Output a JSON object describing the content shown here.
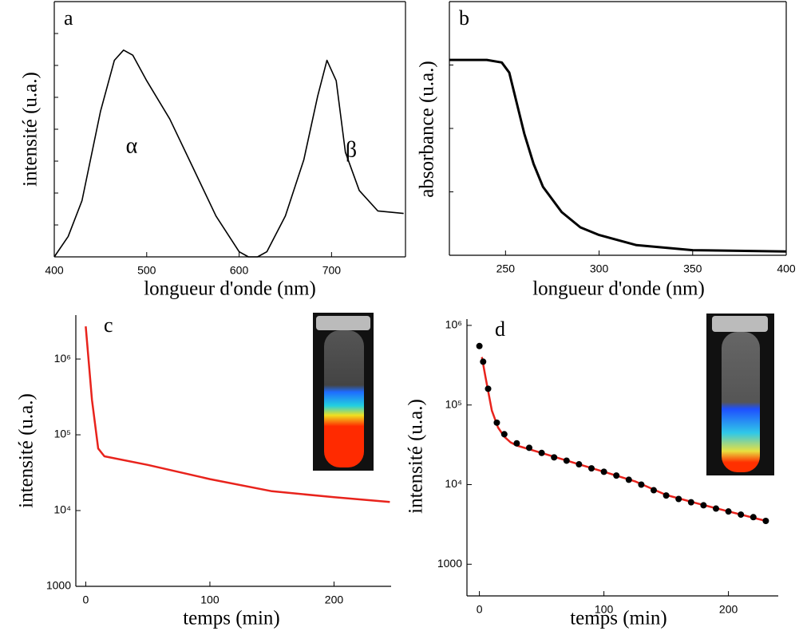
{
  "chart_data": [
    {
      "type": "line",
      "label": "a",
      "x_label": "longueur d'onde (nm)",
      "y_label": "intensité (u.a.)",
      "xlim": [
        400,
        780
      ],
      "xticks": [
        400,
        500,
        600,
        700
      ],
      "ylim": [
        0,
        1
      ],
      "log_y": false,
      "annotations": [
        "α",
        "β"
      ],
      "series": [
        {
          "mode": "lines",
          "color": "#000000",
          "x": [
            400,
            415,
            430,
            450,
            465,
            475,
            485,
            500,
            525,
            550,
            575,
            600,
            610,
            620,
            630,
            650,
            670,
            685,
            695,
            705,
            715,
            730,
            750,
            778
          ],
          "values": [
            0,
            0.08,
            0.22,
            0.57,
            0.77,
            0.81,
            0.79,
            0.69,
            0.54,
            0.35,
            0.16,
            0.02,
            0,
            0,
            0.02,
            0.16,
            0.38,
            0.63,
            0.77,
            0.69,
            0.41,
            0.26,
            0.18,
            0.17
          ]
        }
      ]
    },
    {
      "type": "line",
      "label": "b",
      "x_label": "longueur d'onde (nm)",
      "y_label": "absorbance (u.a.)",
      "xlim": [
        220,
        400
      ],
      "xticks": [
        250,
        300,
        350,
        400
      ],
      "ylim": [
        0,
        1
      ],
      "log_y": false,
      "series": [
        {
          "mode": "lines",
          "color": "#000000",
          "x": [
            220,
            240,
            248,
            252,
            256,
            260,
            265,
            270,
            280,
            290,
            300,
            320,
            350,
            400
          ],
          "values": [
            0.77,
            0.77,
            0.76,
            0.72,
            0.6,
            0.48,
            0.36,
            0.27,
            0.17,
            0.11,
            0.08,
            0.04,
            0.02,
            0.015
          ]
        }
      ]
    },
    {
      "type": "line",
      "label": "c",
      "x_label": "temps (min)",
      "y_label": "intensité (u.a.)",
      "xlim": [
        -8,
        246
      ],
      "xticks": [
        0,
        100,
        200
      ],
      "ylim": [
        1000,
        3800000
      ],
      "log_y": true,
      "yticks": [
        1000,
        {
          "value": 10000,
          "label": "10⁴"
        },
        {
          "value": 100000,
          "label": "10⁵"
        },
        {
          "value": 1000000,
          "label": "10⁶"
        }
      ],
      "series": [
        {
          "mode": "lines",
          "color": "#e8231c",
          "x": [
            0,
            5,
            10,
            15,
            50,
            100,
            150,
            200,
            245
          ],
          "values": [
            2700000,
            290000,
            66000,
            52000,
            40000,
            26000,
            18000,
            15000,
            13000
          ]
        }
      ]
    },
    {
      "type": "line",
      "label": "d",
      "x_label": "temps (min)",
      "y_label": "intensité (u.a.)",
      "xlim": [
        -10,
        240
      ],
      "xticks": [
        0,
        100,
        200
      ],
      "ylim": [
        400,
        1200000
      ],
      "log_y": true,
      "yticks": [
        1000,
        {
          "value": 10000,
          "label": "10⁴"
        },
        {
          "value": 100000,
          "label": "10⁵"
        },
        {
          "value": 1000000,
          "label": "10⁶"
        }
      ],
      "series": [
        {
          "mode": "lines",
          "color": "#e8231c",
          "x": [
            2,
            5,
            10,
            15,
            20,
            25,
            30,
            50,
            75,
            100,
            125,
            150,
            175,
            200,
            230
          ],
          "values": [
            400000,
            220000,
            85000,
            52000,
            40000,
            34000,
            31000,
            25000,
            19000,
            14500,
            11000,
            7400,
            5800,
            4600,
            3500
          ]
        },
        {
          "mode": "markers",
          "color": "#000000",
          "x": [
            0,
            3,
            7,
            14,
            20,
            30,
            40,
            50,
            60,
            70,
            80,
            90,
            100,
            110,
            120,
            130,
            140,
            150,
            160,
            170,
            180,
            190,
            200,
            210,
            220,
            230
          ],
          "values": [
            550000,
            350000,
            160000,
            60000,
            43000,
            33000,
            29000,
            25000,
            22000,
            20000,
            18000,
            16000,
            14500,
            13000,
            11500,
            10000,
            8500,
            7300,
            6600,
            6000,
            5500,
            5000,
            4600,
            4200,
            3900,
            3500
          ]
        }
      ]
    }
  ]
}
